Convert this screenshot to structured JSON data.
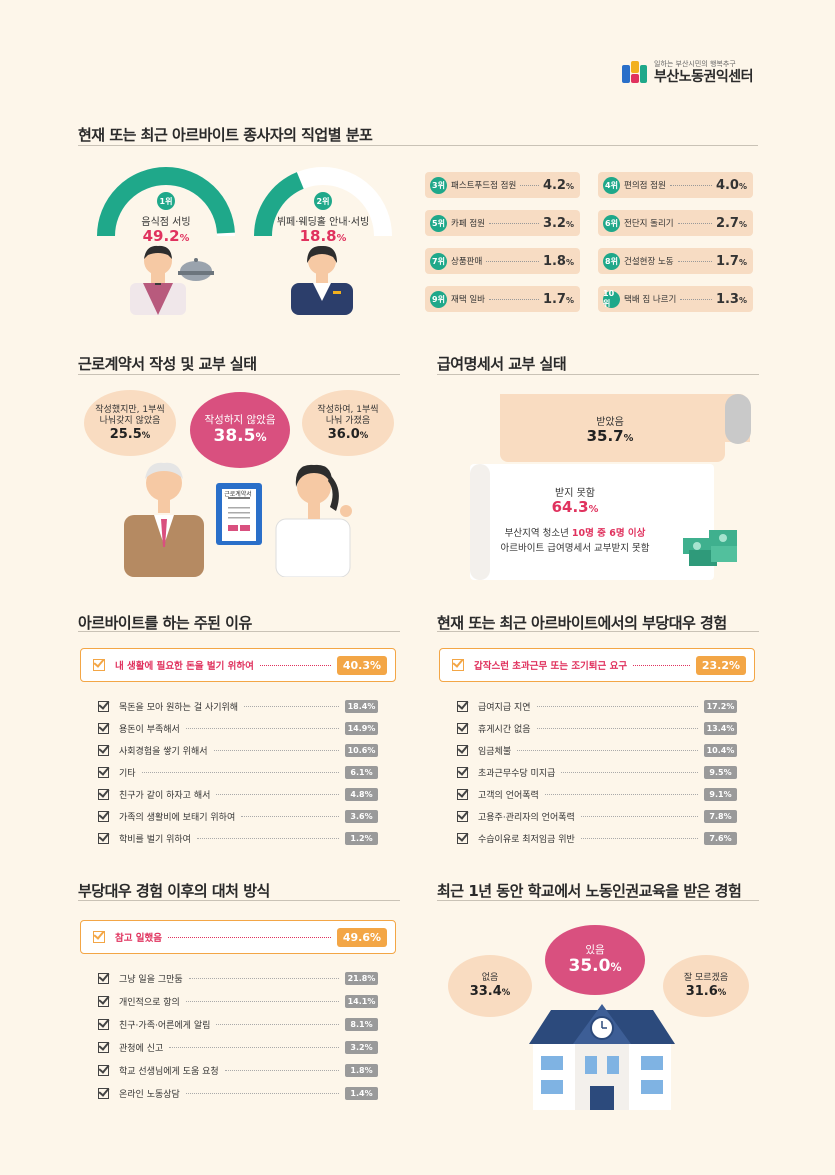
{
  "logo": {
    "tagline": "일하는 부산시민의 행복추구",
    "name": "부산노동권익센터"
  },
  "section1": {
    "title": "현재 또는 최근 아르바이트 종사자의 직업별 분포",
    "top": [
      {
        "rank": "1위",
        "label": "음식점 서빙",
        "value": "49.2",
        "unit": "%",
        "fill": 0.492
      },
      {
        "rank": "2위",
        "label": "뷔페·웨딩홀 안내·서빙",
        "value": "18.8",
        "unit": "%",
        "fill": 0.188
      }
    ],
    "ranks": [
      {
        "rank": "3위",
        "label": "패스트푸드점 점원",
        "value": "4.2",
        "unit": "%"
      },
      {
        "rank": "4위",
        "label": "편의점 점원",
        "value": "4.0",
        "unit": "%"
      },
      {
        "rank": "5위",
        "label": "카페 점원",
        "value": "3.2",
        "unit": "%"
      },
      {
        "rank": "6위",
        "label": "전단지 돌리기",
        "value": "2.7",
        "unit": "%"
      },
      {
        "rank": "7위",
        "label": "상품판매",
        "value": "1.8",
        "unit": "%"
      },
      {
        "rank": "8위",
        "label": "건설현장 노동",
        "value": "1.7",
        "unit": "%"
      },
      {
        "rank": "9위",
        "label": "재택 일바",
        "value": "1.7",
        "unit": "%"
      },
      {
        "rank": "10위",
        "label": "택배 짐 나르기",
        "value": "1.3",
        "unit": "%"
      }
    ]
  },
  "section2": {
    "title": "근로계약서 작성 및 교부 실태",
    "left": {
      "text1": "작성했지만, 1부씩",
      "text2": "나눠갖지 않았음",
      "value": "25.5",
      "unit": "%"
    },
    "center": {
      "text1": "작성하지 않았음",
      "value": "38.5",
      "unit": "%"
    },
    "right": {
      "text1": "작성하여, 1부씩",
      "text2": "나눠 가졌음",
      "value": "36.0",
      "unit": "%"
    },
    "document_label": "근로계약서"
  },
  "section3": {
    "title": "급여명세서 교부 실태",
    "received": {
      "label": "받았음",
      "value": "35.7",
      "unit": "%"
    },
    "not_received": {
      "label": "받지 못함",
      "value": "64.3",
      "unit": "%"
    },
    "note_line1_a": "부산지역 청소년 ",
    "note_line1_b": "10명 중 6명 이상",
    "note_line2": "아르바이트 급여명세서 교부받지 못함"
  },
  "section4": {
    "title": "아르바이트를 하는 주된 이유",
    "highlight": {
      "label": "내 생활에 필요한 돈을 벌기 위하여",
      "value": "40.3%"
    },
    "items": [
      {
        "label": "목돈을 모아 원하는 걸 사기위해",
        "value": "18.4%"
      },
      {
        "label": "용돈이 부족해서",
        "value": "14.9%"
      },
      {
        "label": "사회경험을 쌓기 위해서",
        "value": "10.6%"
      },
      {
        "label": "기타",
        "value": "6.1%"
      },
      {
        "label": "친구가 같이 하자고 해서",
        "value": "4.8%"
      },
      {
        "label": "가족의 생활비에 보태기 위하여",
        "value": "3.6%"
      },
      {
        "label": "학비를 벌기 위하여",
        "value": "1.2%"
      }
    ]
  },
  "section5": {
    "title": "현재 또는 최근 아르바이트에서의 부당대우 경험",
    "highlight": {
      "label": "갑작스런 초과근무 또는 조기퇴근 요구",
      "value": "23.2%"
    },
    "items": [
      {
        "label": "급여지급 지연",
        "value": "17.2%"
      },
      {
        "label": "휴게시간 없음",
        "value": "13.4%"
      },
      {
        "label": "임금체불",
        "value": "10.4%"
      },
      {
        "label": "초과근무수당 미지급",
        "value": "9.5%"
      },
      {
        "label": "고객의 언어폭력",
        "value": "9.1%"
      },
      {
        "label": "고용주·관리자의 언어폭력",
        "value": "7.8%"
      },
      {
        "label": "수습이유로 최저임금 위반",
        "value": "7.6%"
      }
    ]
  },
  "section6": {
    "title": "부당대우 경험 이후의 대처 방식",
    "highlight": {
      "label": "참고 일했음",
      "value": "49.6%"
    },
    "items": [
      {
        "label": "그냥 일을 그만둠",
        "value": "21.8%"
      },
      {
        "label": "개인적으로 항의",
        "value": "14.1%"
      },
      {
        "label": "친구·가족·어른에게 알림",
        "value": "8.1%"
      },
      {
        "label": "관청에 신고",
        "value": "3.2%"
      },
      {
        "label": "학교 선생님에게 도움 요청",
        "value": "1.8%"
      },
      {
        "label": "온라인 노동상담",
        "value": "1.4%"
      }
    ]
  },
  "section7": {
    "title": "최근 1년 동안 학교에서 노동인권교육을 받은 경험",
    "yes": {
      "label": "있음",
      "value": "35.0",
      "unit": "%"
    },
    "no": {
      "label": "없음",
      "value": "33.4",
      "unit": "%"
    },
    "unknown": {
      "label": "잘 모르겠음",
      "value": "31.6",
      "unit": "%"
    }
  },
  "colors": {
    "accent_green": "#1fa88a",
    "accent_pink": "#d9507f",
    "accent_red": "#e0325e",
    "accent_orange": "#f3a646",
    "box_peach": "#f7dcc3",
    "background": "#fdf6ea"
  }
}
